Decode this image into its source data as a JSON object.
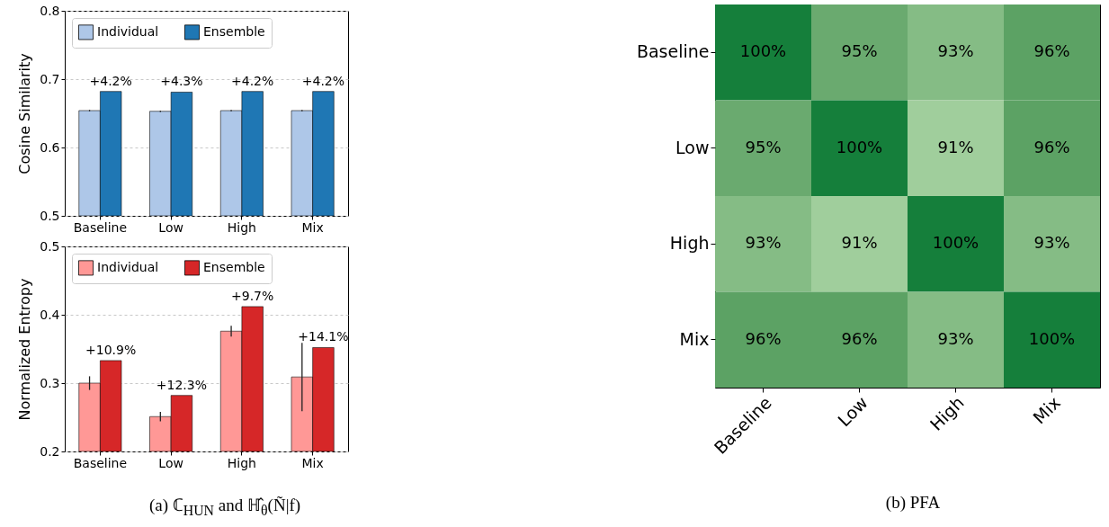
{
  "chart_data": [
    {
      "type": "bar",
      "ylabel": "Cosine Similarity",
      "categories": [
        "Baseline",
        "Low",
        "High",
        "Mix"
      ],
      "ylim": [
        0.5,
        0.8
      ],
      "yticks": [
        0.5,
        0.6,
        0.7,
        0.8
      ],
      "grid": "y",
      "legend": "top left",
      "series": [
        {
          "name": "Individual",
          "color": "#aec7e8",
          "values": [
            0.654,
            0.653,
            0.654,
            0.654
          ],
          "errors": [
            0.001,
            0.001,
            0.001,
            0.001
          ]
        },
        {
          "name": "Ensemble",
          "color": "#1f77b4",
          "values": [
            0.682,
            0.681,
            0.682,
            0.682
          ]
        }
      ],
      "annotations": [
        {
          "text": "+4.2%",
          "x": "Baseline",
          "y": 0.682
        },
        {
          "text": "+4.3%",
          "x": "Low",
          "y": 0.681
        },
        {
          "text": "+4.2%",
          "x": "High",
          "y": 0.682
        },
        {
          "text": "+4.2%",
          "x": "Mix",
          "y": 0.682
        }
      ]
    },
    {
      "type": "bar",
      "ylabel": "Normalized Entropy",
      "categories": [
        "Baseline",
        "Low",
        "High",
        "Mix"
      ],
      "ylim": [
        0.2,
        0.5
      ],
      "yticks": [
        0.2,
        0.3,
        0.4,
        0.5
      ],
      "grid": "y",
      "legend": "top left",
      "series": [
        {
          "name": "Individual",
          "color": "#ff9896",
          "values": [
            0.3,
            0.251,
            0.376,
            0.309
          ],
          "errors": [
            0.01,
            0.007,
            0.008,
            0.05
          ]
        },
        {
          "name": "Ensemble",
          "color": "#d62728",
          "values": [
            0.333,
            0.282,
            0.412,
            0.352
          ]
        }
      ],
      "annotations": [
        {
          "text": "+10.9%",
          "x": "Baseline",
          "y": 0.333
        },
        {
          "text": "+12.3%",
          "x": "Low",
          "y": 0.282
        },
        {
          "text": "+9.7%",
          "x": "High",
          "y": 0.412
        },
        {
          "text": "+14.1%",
          "x": "Mix",
          "y": 0.352
        },
        "(a) ℂ$_{HUN}$ and ℍ̂$_{θ}$(Ñ|f)"
      ]
    },
    {
      "type": "heatmap",
      "categories": [
        "Baseline",
        "Low",
        "High",
        "Mix"
      ],
      "y_categories": [
        "Baseline",
        "Low",
        "High",
        "Mix"
      ],
      "cells": [
        [
          100,
          95,
          93,
          96
        ],
        [
          95,
          100,
          91,
          96
        ],
        [
          93,
          91,
          100,
          93
        ],
        [
          96,
          96,
          93,
          100
        ]
      ],
      "cell_labels": [
        [
          "100%",
          "95%",
          "93%",
          "96%"
        ],
        [
          "95%",
          "100%",
          "91%",
          "96%"
        ],
        [
          "93%",
          "91%",
          "100%",
          "93%"
        ],
        [
          "96%",
          "96%",
          "93%",
          "100%"
        ]
      ],
      "annotations": [
        "(b) PFA"
      ]
    }
  ]
}
